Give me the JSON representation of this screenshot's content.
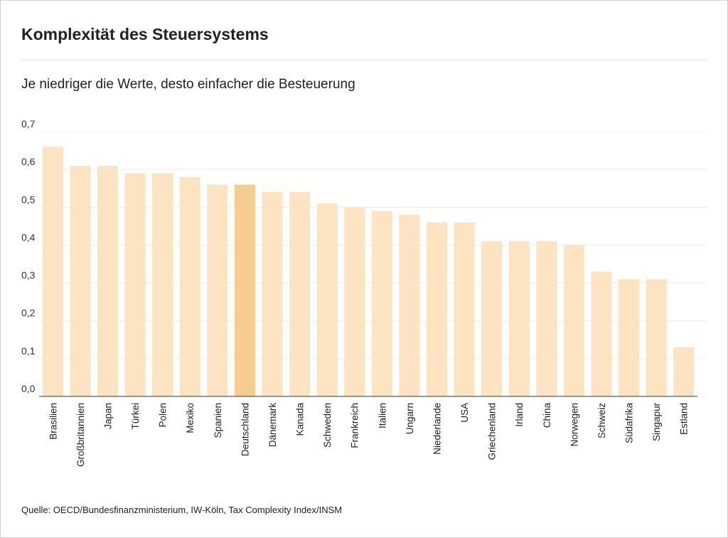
{
  "chart_data": {
    "type": "bar",
    "title": "Komplexität des Steuersystems",
    "subtitle": "Je niedriger die Werte, desto einfacher die Besteuerung",
    "source": "Quelle: OECD/Bundesfinanzministerium, IW-Köln, Tax Complexity Index/INSM",
    "categories": [
      "Brasilien",
      "Großbritannien",
      "Japan",
      "Türkei",
      "Polen",
      "Mexiko",
      "Spanien",
      "Deutschland",
      "Dänemark",
      "Kanada",
      "Schweden",
      "Frankreich",
      "Italien",
      "Ungarn",
      "Niederlande",
      "USA",
      "Griechenland",
      "Irland",
      "China",
      "Norwegen",
      "Schweiz",
      "Südafrika",
      "Singapur",
      "Estland"
    ],
    "values": [
      0.66,
      0.61,
      0.61,
      0.59,
      0.59,
      0.58,
      0.56,
      0.56,
      0.54,
      0.54,
      0.51,
      0.5,
      0.49,
      0.48,
      0.46,
      0.46,
      0.41,
      0.41,
      0.41,
      0.4,
      0.33,
      0.31,
      0.31,
      0.13
    ],
    "colors": [
      "#fce3c2",
      "#fce3c2",
      "#fce3c2",
      "#fce3c2",
      "#fce3c2",
      "#fce3c2",
      "#fce3c2",
      "#f5cd8f",
      "#fce3c2",
      "#fce3c2",
      "#fce3c2",
      "#fce3c2",
      "#fce3c2",
      "#fce3c2",
      "#fce3c2",
      "#fce3c2",
      "#fce3c2",
      "#fce3c2",
      "#fce3c2",
      "#fce3c2",
      "#fce3c2",
      "#fce3c2",
      "#fce3c2",
      "#fce3c2"
    ],
    "ylim": [
      0,
      0.7
    ],
    "yticks": [
      {
        "value": 0,
        "label": "0,0"
      },
      {
        "value": 0.1,
        "label": "0,1"
      },
      {
        "value": 0.2,
        "label": "0,2"
      },
      {
        "value": 0.3,
        "label": "0,3"
      },
      {
        "value": 0.4,
        "label": "0,4"
      },
      {
        "value": 0.5,
        "label": "0,5"
      },
      {
        "value": 0.6,
        "label": "0,6"
      },
      {
        "value": 0.7,
        "label": "0,7"
      }
    ],
    "grid": true
  }
}
